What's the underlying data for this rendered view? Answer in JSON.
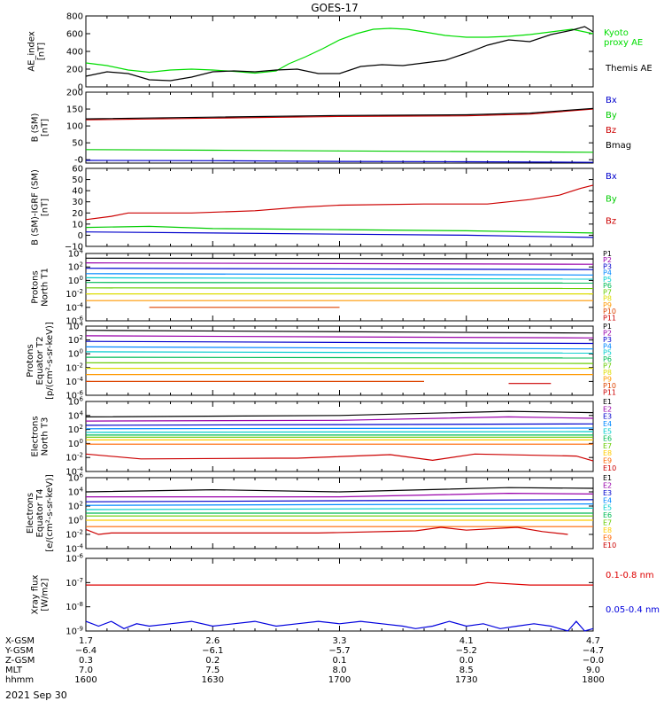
{
  "title": "GOES-17",
  "date_label": "2021 Sep 30",
  "chart_data": [
    {
      "type": "line",
      "ylabel": [
        "AE_index",
        "[nT]"
      ],
      "scale": "linear",
      "ylim": [
        0,
        800
      ],
      "yticks": [
        "0",
        "200",
        "400",
        "600",
        "800"
      ],
      "series": [
        {
          "name": "Kyoto proxy AE",
          "color": "#00dd00",
          "x": [
            1600,
            1605,
            1610,
            1615,
            1620,
            1625,
            1630,
            1635,
            1640,
            1645,
            1648,
            1652,
            1656,
            1700,
            1704,
            1708,
            1712,
            1716,
            1720,
            1725,
            1730,
            1735,
            1740,
            1745,
            1750,
            1755,
            1800
          ],
          "y": [
            270,
            240,
            190,
            165,
            190,
            200,
            190,
            175,
            155,
            180,
            260,
            340,
            430,
            530,
            600,
            650,
            660,
            650,
            620,
            580,
            560,
            560,
            570,
            590,
            620,
            650,
            600
          ]
        },
        {
          "name": "Themis AE",
          "color": "#000000",
          "x": [
            1600,
            1605,
            1610,
            1615,
            1620,
            1625,
            1630,
            1635,
            1640,
            1645,
            1650,
            1655,
            1700,
            1705,
            1710,
            1715,
            1720,
            1725,
            1730,
            1735,
            1740,
            1745,
            1750,
            1755,
            1758,
            1800
          ],
          "y": [
            120,
            170,
            150,
            80,
            70,
            110,
            170,
            180,
            170,
            190,
            200,
            150,
            150,
            230,
            250,
            240,
            270,
            300,
            380,
            470,
            530,
            510,
            590,
            640,
            680,
            620
          ]
        }
      ]
    },
    {
      "type": "line",
      "ylabel": [
        "B (SM)",
        "[nT]"
      ],
      "scale": "linear",
      "ylim": [
        -10,
        200
      ],
      "yticks": [
        "0",
        "50",
        "100",
        "150",
        "200"
      ],
      "extra_ytick": "-0",
      "series": [
        {
          "name": "Bx",
          "color": "#0000cc",
          "x": [
            1600,
            1630,
            1700,
            1730,
            1800
          ],
          "y": [
            -2,
            -3,
            -5,
            -6,
            -8
          ]
        },
        {
          "name": "By",
          "color": "#00cc00",
          "x": [
            1600,
            1630,
            1700,
            1730,
            1800
          ],
          "y": [
            30,
            28,
            26,
            24,
            22
          ]
        },
        {
          "name": "Bz",
          "color": "#cc0000",
          "x": [
            1600,
            1630,
            1700,
            1730,
            1745,
            1800
          ],
          "y": [
            118,
            123,
            128,
            130,
            135,
            150
          ]
        },
        {
          "name": "Bmag",
          "color": "#000000",
          "x": [
            1600,
            1630,
            1700,
            1730,
            1745,
            1800
          ],
          "y": [
            121,
            126,
            131,
            133,
            138,
            152
          ]
        }
      ]
    },
    {
      "type": "line",
      "ylabel": [
        "B (SM)-IGRF (SM)",
        "[nT]"
      ],
      "scale": "linear",
      "ylim": [
        -10,
        60
      ],
      "yticks": [
        "−10",
        "0",
        "10",
        "20",
        "30",
        "40",
        "50",
        "60"
      ],
      "series": [
        {
          "name": "Bx",
          "color": "#0000cc",
          "x": [
            1600,
            1630,
            1700,
            1730,
            1745,
            1800
          ],
          "y": [
            3,
            2,
            1,
            0,
            -1,
            -2
          ]
        },
        {
          "name": "By",
          "color": "#00cc00",
          "x": [
            1600,
            1615,
            1630,
            1700,
            1730,
            1745,
            1800
          ],
          "y": [
            7,
            8,
            6,
            5,
            4,
            3,
            2
          ]
        },
        {
          "name": "Bz",
          "color": "#cc0000",
          "x": [
            1600,
            1606,
            1610,
            1625,
            1640,
            1650,
            1700,
            1720,
            1735,
            1745,
            1752,
            1757,
            1800
          ],
          "y": [
            14,
            17,
            20,
            20,
            22,
            25,
            27,
            28,
            28,
            32,
            36,
            42,
            45
          ]
        }
      ]
    },
    {
      "type": "line",
      "ylabel": [
        "Protons",
        "North T1"
      ],
      "scale": "log",
      "ylim": [
        -6,
        4
      ],
      "yticks": [
        "10^4",
        "10^2",
        "10^0",
        "10^-2",
        "10^-4",
        "10^-6"
      ],
      "series": [
        {
          "name": "P1",
          "color": "#000000",
          "x": [
            1600,
            1800
          ],
          "y": [
            3.3,
            3.2
          ]
        },
        {
          "name": "P2",
          "color": "#9900aa",
          "x": [
            1600,
            1800
          ],
          "y": [
            2.6,
            2.4
          ]
        },
        {
          "name": "P3",
          "color": "#0000cc",
          "x": [
            1600,
            1800
          ],
          "y": [
            1.8,
            1.6
          ]
        },
        {
          "name": "P4",
          "color": "#0088ff",
          "x": [
            1600,
            1800
          ],
          "y": [
            1.0,
            0.8
          ]
        },
        {
          "name": "P5",
          "color": "#00cccc",
          "x": [
            1600,
            1800
          ],
          "y": [
            0.4,
            0.2
          ]
        },
        {
          "name": "P6",
          "color": "#00bb55",
          "x": [
            1600,
            1800
          ],
          "y": [
            -0.3,
            -0.4
          ]
        },
        {
          "name": "P7",
          "color": "#66cc00",
          "x": [
            1600,
            1800
          ],
          "y": [
            -1.1,
            -1.2
          ]
        },
        {
          "name": "P8",
          "color": "#dddd00",
          "x": [
            1600,
            1800
          ],
          "y": [
            -2.0,
            -2.0
          ]
        },
        {
          "name": "P9",
          "color": "#ff9900",
          "x": [
            1600,
            1800
          ],
          "y": [
            -3.0,
            -3.0
          ]
        },
        {
          "name": "P10",
          "color": "#dd4400",
          "x": [
            1615,
            1620,
            1655,
            1700
          ],
          "y": [
            -4.0,
            -4.0,
            -4.0,
            -4.0
          ]
        },
        {
          "name": "P11",
          "color": "#cc0000",
          "x": [],
          "y": []
        }
      ]
    },
    {
      "type": "line",
      "ylabel": [
        "Protons",
        "Equator T2",
        "[p/(cm²-s-sr-keV)]"
      ],
      "scale": "log",
      "ylim": [
        -6,
        4
      ],
      "yticks": [
        "10^4",
        "10^2",
        "10^0",
        "10^-2",
        "10^-4",
        "10^-6"
      ],
      "series": [
        {
          "name": "P1",
          "color": "#000000",
          "x": [
            1600,
            1800
          ],
          "y": [
            3.4,
            3.0
          ]
        },
        {
          "name": "P2",
          "color": "#9900aa",
          "x": [
            1600,
            1800
          ],
          "y": [
            2.6,
            2.3
          ]
        },
        {
          "name": "P3",
          "color": "#0000cc",
          "x": [
            1600,
            1800
          ],
          "y": [
            1.8,
            1.5
          ]
        },
        {
          "name": "P4",
          "color": "#0088ff",
          "x": [
            1600,
            1800
          ],
          "y": [
            1.0,
            0.7
          ]
        },
        {
          "name": "P5",
          "color": "#00cccc",
          "x": [
            1600,
            1800
          ],
          "y": [
            0.3,
            0.1
          ]
        },
        {
          "name": "P6",
          "color": "#00bb55",
          "x": [
            1600,
            1800
          ],
          "y": [
            -0.5,
            -0.6
          ]
        },
        {
          "name": "P7",
          "color": "#66cc00",
          "x": [
            1600,
            1800
          ],
          "y": [
            -1.3,
            -1.4
          ]
        },
        {
          "name": "P8",
          "color": "#dddd00",
          "x": [
            1600,
            1800
          ],
          "y": [
            -2.1,
            -2.1
          ]
        },
        {
          "name": "P9",
          "color": "#ff9900",
          "x": [
            1600,
            1800
          ],
          "y": [
            -3.0,
            -3.0
          ]
        },
        {
          "name": "P10",
          "color": "#dd4400",
          "x": [
            1600,
            1610,
            1630,
            1640,
            1710,
            1720
          ],
          "y": [
            -4.0,
            -4.0,
            -4.0,
            -4.0,
            -4.0,
            -4.0
          ]
        },
        {
          "name": "P11",
          "color": "#cc0000",
          "x": [
            1740,
            1750
          ],
          "y": [
            -4.3,
            -4.3
          ]
        }
      ]
    },
    {
      "type": "line",
      "ylabel": [
        "Electrons",
        "North T3"
      ],
      "scale": "log",
      "ylim": [
        -4,
        6
      ],
      "yticks": [
        "10^6",
        "10^4",
        "10^2",
        "10^0",
        "10^-2",
        "10^-4"
      ],
      "series": [
        {
          "name": "E1",
          "color": "#000000",
          "x": [
            1600,
            1700,
            1740,
            1800
          ],
          "y": [
            3.8,
            4.0,
            4.6,
            4.4
          ]
        },
        {
          "name": "E2",
          "color": "#9900aa",
          "x": [
            1600,
            1700,
            1740,
            1800
          ],
          "y": [
            3.2,
            3.3,
            3.8,
            3.6
          ]
        },
        {
          "name": "E3",
          "color": "#0000cc",
          "x": [
            1600,
            1800
          ],
          "y": [
            2.6,
            2.8
          ]
        },
        {
          "name": "E4",
          "color": "#0088ff",
          "x": [
            1600,
            1800
          ],
          "y": [
            2.1,
            2.2
          ]
        },
        {
          "name": "E5",
          "color": "#00cccc",
          "x": [
            1600,
            1800
          ],
          "y": [
            1.6,
            1.7
          ]
        },
        {
          "name": "E6",
          "color": "#00bb55",
          "x": [
            1600,
            1800
          ],
          "y": [
            1.2,
            1.2
          ]
        },
        {
          "name": "E7",
          "color": "#66cc00",
          "x": [
            1600,
            1800
          ],
          "y": [
            0.9,
            0.9
          ]
        },
        {
          "name": "E8",
          "color": "#ffcc00",
          "x": [
            1600,
            1800
          ],
          "y": [
            0.5,
            0.5
          ]
        },
        {
          "name": "E9",
          "color": "#ff6600",
          "x": [
            1600,
            1800
          ],
          "y": [
            -0.1,
            -0.1
          ]
        },
        {
          "name": "E10",
          "color": "#cc0000",
          "x": [
            1600,
            1613,
            1645,
            1650,
            1712,
            1722,
            1732,
            1756,
            1800
          ],
          "y": [
            -1.5,
            -2.2,
            -2.1,
            -2.1,
            -1.6,
            -2.4,
            -1.5,
            -1.8,
            -2.5
          ]
        }
      ]
    },
    {
      "type": "line",
      "ylabel": [
        "Electrons",
        "Equator T4",
        "[e/(cm²-s-sr-keV)]"
      ],
      "scale": "log",
      "ylim": [
        -4,
        6
      ],
      "yticks": [
        "10^6",
        "10^4",
        "10^2",
        "10^0",
        "10^-2",
        "10^-4"
      ],
      "series": [
        {
          "name": "E1",
          "color": "#000000",
          "x": [
            1600,
            1630,
            1700,
            1740,
            1800
          ],
          "y": [
            4.0,
            4.3,
            4.0,
            4.6,
            4.5
          ]
        },
        {
          "name": "E2",
          "color": "#9900aa",
          "x": [
            1600,
            1700,
            1740,
            1800
          ],
          "y": [
            3.3,
            3.3,
            3.8,
            3.7
          ]
        },
        {
          "name": "E3",
          "color": "#0000cc",
          "x": [
            1600,
            1800
          ],
          "y": [
            2.6,
            2.9
          ]
        },
        {
          "name": "E4",
          "color": "#0088ff",
          "x": [
            1600,
            1800
          ],
          "y": [
            2.1,
            2.3
          ]
        },
        {
          "name": "E5",
          "color": "#00cccc",
          "x": [
            1600,
            1800
          ],
          "y": [
            1.5,
            1.7
          ]
        },
        {
          "name": "E6",
          "color": "#00bb55",
          "x": [
            1600,
            1800
          ],
          "y": [
            1.0,
            1.0
          ]
        },
        {
          "name": "E7",
          "color": "#66cc00",
          "x": [
            1600,
            1800
          ],
          "y": [
            0.6,
            0.6
          ]
        },
        {
          "name": "E8",
          "color": "#ffcc00",
          "x": [
            1600,
            1800
          ],
          "y": [
            0.0,
            0.0
          ]
        },
        {
          "name": "E9",
          "color": "#ff6600",
          "x": [
            1600,
            1800
          ],
          "y": [
            -0.9,
            -0.9
          ]
        },
        {
          "name": "E10",
          "color": "#cc0000",
          "x": [
            1600,
            1603,
            1606,
            1650,
            1655,
            1718,
            1724,
            1730,
            1742,
            1748,
            1754
          ],
          "y": [
            -1.3,
            -2.0,
            -1.8,
            -1.8,
            -1.8,
            -1.5,
            -1.0,
            -1.4,
            -1.0,
            -1.6,
            -2.0
          ]
        }
      ]
    },
    {
      "type": "line",
      "ylabel": [
        "Xray flux",
        "[W/m2]"
      ],
      "scale": "log",
      "ylim": [
        -9,
        -6
      ],
      "yticks": [
        "10^-6",
        "10^-7",
        "10^-8",
        "10^-9"
      ],
      "series": [
        {
          "name": "0.1-0.8 nm",
          "color": "#dd0000",
          "x": [
            1600,
            1620,
            1640,
            1700,
            1720,
            1732,
            1735,
            1745,
            1800
          ],
          "y": [
            -7.1,
            -7.1,
            -7.1,
            -7.1,
            -7.1,
            -7.1,
            -7.0,
            -7.1,
            -7.1
          ]
        },
        {
          "name": "0.05-0.4 nm",
          "color": "#0000dd",
          "x": [
            1600,
            1603,
            1606,
            1609,
            1612,
            1615,
            1620,
            1625,
            1630,
            1635,
            1640,
            1645,
            1650,
            1655,
            1700,
            1705,
            1710,
            1715,
            1718,
            1722,
            1726,
            1730,
            1734,
            1738,
            1742,
            1746,
            1750,
            1754,
            1756,
            1758,
            1800
          ],
          "y": [
            -8.6,
            -8.8,
            -8.6,
            -8.9,
            -8.7,
            -8.8,
            -8.7,
            -8.6,
            -8.8,
            -8.7,
            -8.6,
            -8.8,
            -8.7,
            -8.6,
            -8.7,
            -8.6,
            -8.7,
            -8.8,
            -8.9,
            -8.8,
            -8.6,
            -8.8,
            -8.7,
            -8.9,
            -8.8,
            -8.7,
            -8.8,
            -9.0,
            -8.6,
            -9.0,
            -8.9
          ]
        }
      ]
    }
  ],
  "orbit_table": {
    "rows": [
      {
        "label": "X-GSM",
        "values": [
          "1.7",
          "2.6",
          "3.3",
          "4.1",
          "4.7"
        ]
      },
      {
        "label": "Y-GSM",
        "values": [
          "−6.4",
          "−6.1",
          "−5.7",
          "−5.2",
          "−4.7"
        ]
      },
      {
        "label": "Z-GSM",
        "values": [
          "0.3",
          "0.2",
          "0.1",
          "0.0",
          "−0.0"
        ]
      },
      {
        "label": "MLT",
        "values": [
          "7.0",
          "7.5",
          "8.0",
          "8.5",
          "9.0"
        ]
      },
      {
        "label": "hhmm",
        "values": [
          "1600",
          "1630",
          "1700",
          "1730",
          "1800"
        ]
      }
    ]
  },
  "style": {
    "proxy_ae_label": [
      "Kyoto",
      "proxy AE"
    ],
    "themis_label": "Themis AE"
  }
}
